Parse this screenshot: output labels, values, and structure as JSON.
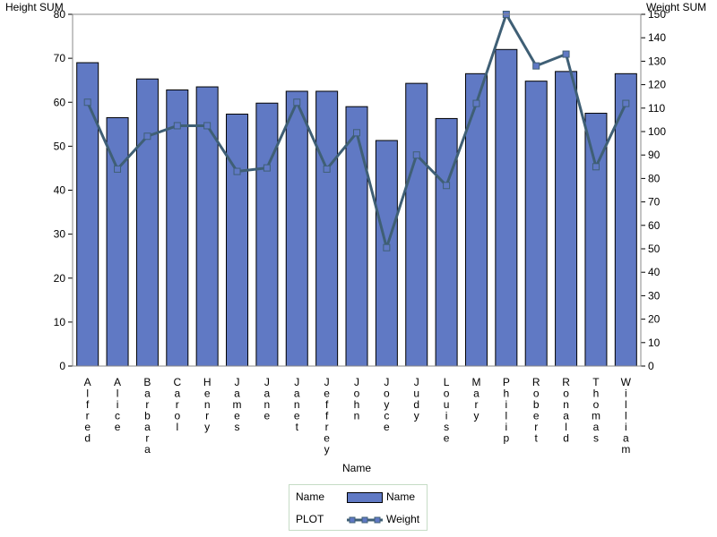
{
  "chart_data": {
    "type": "bar",
    "categories": [
      "Alfred",
      "Alice",
      "Barbara",
      "Carol",
      "Henry",
      "James",
      "Jane",
      "Janet",
      "Jeffrey",
      "John",
      "Joyce",
      "Judy",
      "Louise",
      "Mary",
      "Philip",
      "Robert",
      "Ronald",
      "Thomas",
      "William"
    ],
    "series": [
      {
        "name": "Name",
        "type": "bar",
        "axis": "left",
        "values": [
          69.0,
          56.5,
          65.3,
          62.8,
          63.5,
          57.3,
          59.8,
          62.5,
          62.5,
          59.0,
          51.3,
          64.3,
          56.3,
          66.5,
          72.0,
          64.8,
          67.0,
          57.5,
          66.5
        ]
      },
      {
        "name": "Weight",
        "type": "line",
        "axis": "right",
        "values": [
          112.5,
          84.0,
          98.0,
          102.5,
          102.5,
          83.0,
          84.5,
          112.5,
          84.0,
          99.5,
          50.5,
          90.0,
          77.0,
          112.0,
          150.0,
          128.0,
          133.0,
          85.0,
          112.0
        ]
      }
    ],
    "ylabel_left": "Height SUM",
    "ylabel_right": "Weight SUM",
    "xlabel": "Name",
    "ylim_left": [
      0,
      80
    ],
    "ylim_right": [
      0,
      150
    ],
    "yticks_left": [
      "0",
      "10",
      "20",
      "30",
      "40",
      "50",
      "60",
      "70",
      "80"
    ],
    "yticks_right": [
      "0",
      "10",
      "20",
      "30",
      "40",
      "50",
      "60",
      "70",
      "80",
      "90",
      "100",
      "110",
      "120",
      "130",
      "140",
      "150"
    ],
    "bar_color": "#6079c4",
    "line_color": "#3f5f75",
    "legend": {
      "position": "bottom",
      "rows": [
        {
          "label": "Name",
          "entry": "Name"
        },
        {
          "label": "PLOT",
          "entry": "Weight"
        }
      ]
    }
  }
}
